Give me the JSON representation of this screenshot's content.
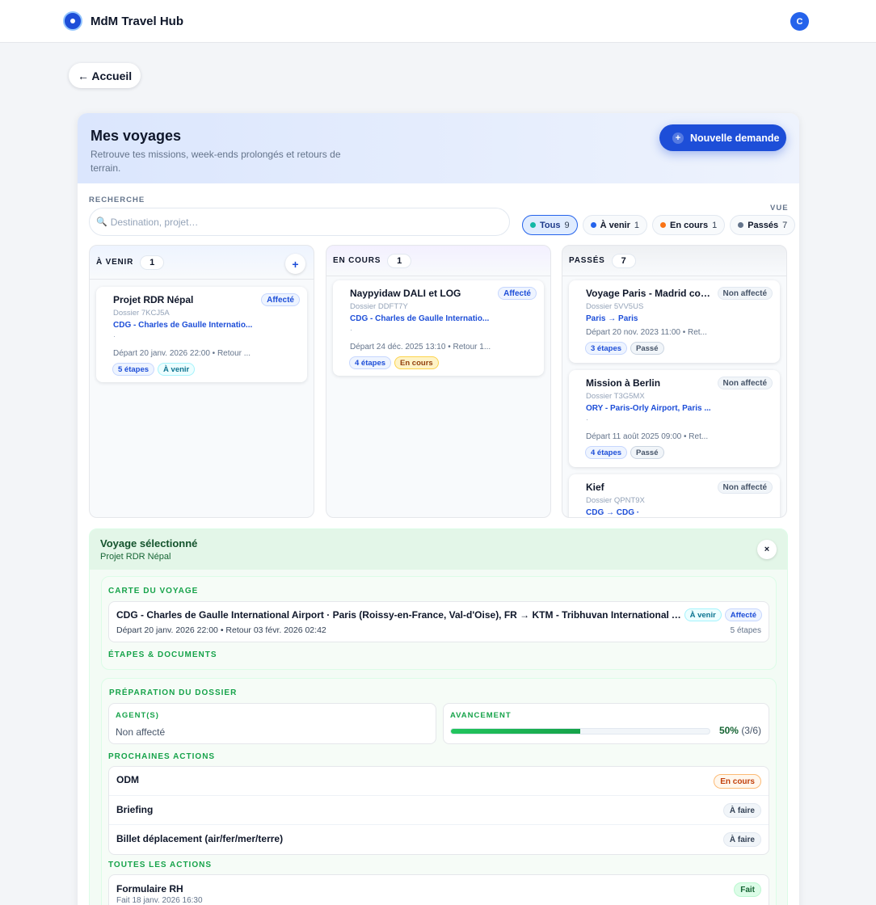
{
  "app": {
    "name": "MdM Travel Hub",
    "avatar_initial": "C"
  },
  "nav": {
    "back_label": "← Accueil"
  },
  "header": {
    "title": "Mes voyages",
    "subtitle": "Retrouve tes missions, week-ends prolongés et retours de terrain.",
    "new_button": "Nouvelle demande",
    "new_icon": "+"
  },
  "search": {
    "label": "RECHERCHE",
    "icon": "🔍",
    "placeholder": "Destination, projet…",
    "value": ""
  },
  "view": {
    "label": "VUE",
    "filters": [
      {
        "label": "Tous",
        "count": "9",
        "color": "#14b8a6",
        "active": true
      },
      {
        "label": "À venir",
        "count": "1",
        "color": "#2563eb",
        "active": false
      },
      {
        "label": "En cours",
        "count": "1",
        "color": "#f97316",
        "active": false
      },
      {
        "label": "Passés",
        "count": "7",
        "color": "#64748b",
        "active": false
      }
    ]
  },
  "columns": {
    "avenir": {
      "title": "À VENIR",
      "count": "1",
      "add_icon": "+",
      "trips": [
        {
          "title": "Projet RDR Népal",
          "status": "Affecté",
          "dossier": "Dossier 7KCJ5A",
          "route": "CDG - Charles de Gaulle Internatio...",
          "sep": "·",
          "dates": "Départ 20 janv. 2026 22:00 • Retour ...",
          "steps": "5 étapes",
          "phase": "À venir"
        }
      ]
    },
    "encours": {
      "title": "EN COURS",
      "count": "1",
      "trips": [
        {
          "title": "Naypyidaw DALI et LOG",
          "status": "Affecté",
          "dossier": "Dossier DDFT7Y",
          "route": "CDG - Charles de Gaulle Internatio...",
          "sep": "·",
          "dates": "Départ 24 déc. 2025 13:10 • Retour 1...",
          "steps": "4 étapes",
          "phase": "En cours"
        }
      ]
    },
    "passes": {
      "title": "PASSÉS",
      "count": "7",
      "trips": [
        {
          "title": "Voyage Paris - Madrid conf...",
          "status": "Non affecté",
          "dossier": "Dossier 5VV5US",
          "route": "Paris → Paris",
          "sep": "·",
          "dates": "Départ 20 nov. 2023 11:00 • Ret...",
          "steps": "3 étapes",
          "phase": "Passé"
        },
        {
          "title": "Mission à Berlin",
          "status": "Non affecté",
          "dossier": "Dossier T3G5MX",
          "route": "ORY - Paris-Orly Airport, Paris ...",
          "sep": "·",
          "dates": "Départ 11 août 2025 09:00 • Ret...",
          "steps": "4 étapes",
          "phase": "Passé"
        },
        {
          "title": "Kief",
          "status": "Non affecté",
          "dossier": "Dossier QPNT9X",
          "route": "CDG → CDG ·"
        }
      ]
    }
  },
  "selected": {
    "title": "Voyage sélectionné",
    "name": "Projet RDR Népal",
    "close_icon": "×",
    "map": {
      "label": "CARTE DU VOYAGE",
      "route": "CDG - Charles de Gaulle International Airport · Paris (Roissy-en-France, Val-d'Oise), FR → KTM - Tribhuvan International Airp...",
      "dates": "Départ 20 janv. 2026 22:00 • Retour 03 févr. 2026 02:42",
      "phase": "À venir",
      "status": "Affecté",
      "steps": "5 étapes"
    },
    "docs_label": "ÉTAPES & DOCUMENTS",
    "prep": {
      "label": "PRÉPARATION DU DOSSIER",
      "agents_label": "AGENT(S)",
      "agents_value": "Non affecté",
      "progress_label": "AVANCEMENT",
      "progress_percent": "50%",
      "progress_count": "(3/6)",
      "progress_fraction": 0.5,
      "next_label": "PROCHAINES ACTIONS",
      "next_actions": [
        {
          "name": "ODM",
          "status": "En cours"
        },
        {
          "name": "Briefing",
          "status": "À faire"
        },
        {
          "name": "Billet déplacement (air/fer/mer/terre)",
          "status": "À faire"
        }
      ],
      "all_label": "TOUTES LES ACTIONS",
      "all_actions": [
        {
          "name": "Formulaire RH",
          "status": "Fait",
          "date": "Fait 18 janv. 2026 16:30"
        }
      ]
    }
  }
}
